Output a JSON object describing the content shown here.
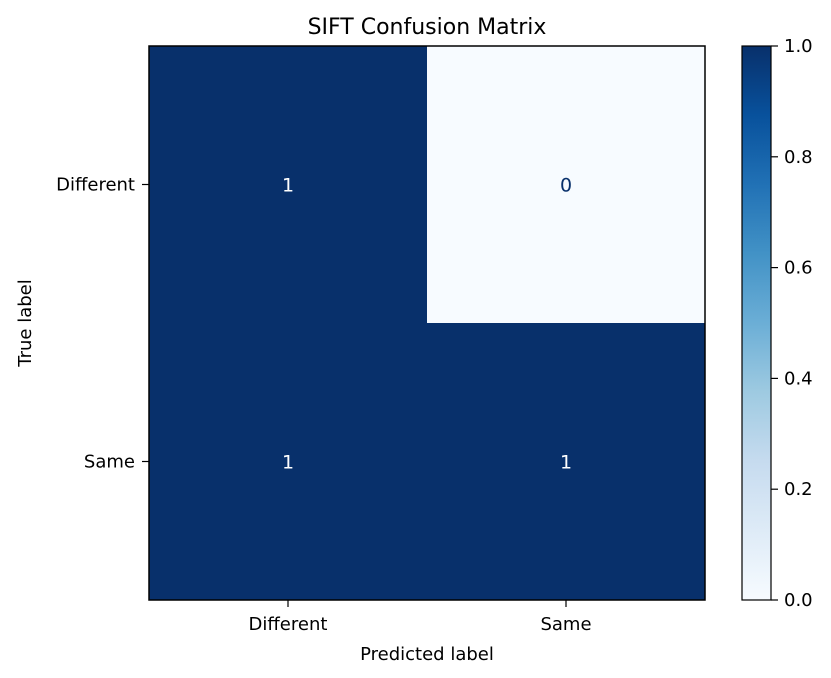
{
  "chart_data": {
    "type": "heatmap",
    "title": "SIFT Confusion Matrix",
    "xlabel": "Predicted label",
    "ylabel": "True label",
    "x_categories": [
      "Different",
      "Same"
    ],
    "y_categories": [
      "Different",
      "Same"
    ],
    "values": [
      [
        1,
        0
      ],
      [
        1,
        1
      ]
    ],
    "value_labels": [
      [
        "1",
        "0"
      ],
      [
        "1",
        "1"
      ]
    ],
    "colormap": "Blues",
    "color_low": "#f7fbff",
    "color_high": "#08306b",
    "colorbar": {
      "range": [
        0,
        1
      ],
      "ticks": [
        "0.0",
        "0.2",
        "0.4",
        "0.6",
        "0.8",
        "1.0"
      ]
    },
    "grid": false
  }
}
